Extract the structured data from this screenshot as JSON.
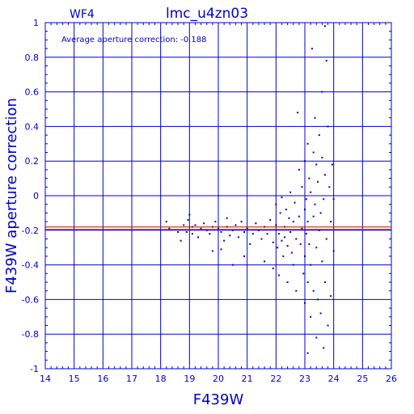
{
  "chart_data": {
    "type": "scatter",
    "title": "lmc_u4zn03",
    "subtitle": "WF4",
    "annotation": "Average aperture correction: -0.188",
    "xlabel": "F439W",
    "ylabel": "F439W aperture correction",
    "xlim": [
      14,
      26
    ],
    "ylim": [
      -1,
      1
    ],
    "x_ticks": [
      "14",
      "15",
      "16",
      "17",
      "18",
      "19",
      "20",
      "21",
      "22",
      "23",
      "24",
      "25",
      "26"
    ],
    "y_ticks": [
      "-1",
      "-0.8",
      "-0.6",
      "-0.4",
      "-0.2",
      "0",
      "0.2",
      "0.4",
      "0.6",
      "0.8",
      "1"
    ],
    "grid": true,
    "reference_line": {
      "y": -0.188,
      "color": "#cc0000"
    },
    "colors": {
      "axis": "#0000cc",
      "points": "#0000cc",
      "line": "#cc0000"
    },
    "series": [
      {
        "points": [
          [
            18.2,
            -0.15
          ],
          [
            18.3,
            -0.19
          ],
          [
            18.6,
            -0.21
          ],
          [
            18.7,
            -0.26
          ],
          [
            18.8,
            -0.17
          ],
          [
            18.9,
            -0.21
          ],
          [
            18.95,
            -0.14
          ],
          [
            19.0,
            -0.11
          ],
          [
            19.1,
            -0.22
          ],
          [
            19.1,
            -0.18
          ],
          [
            19.2,
            -0.17
          ],
          [
            19.3,
            -0.24
          ],
          [
            19.4,
            -0.19
          ],
          [
            19.5,
            -0.16
          ],
          [
            19.6,
            -0.2
          ],
          [
            19.7,
            -0.22
          ],
          [
            19.8,
            -0.18
          ],
          [
            19.8,
            -0.32
          ],
          [
            19.9,
            -0.15
          ],
          [
            20.0,
            -0.19
          ],
          [
            20.1,
            -0.21
          ],
          [
            20.1,
            -0.31
          ],
          [
            20.2,
            -0.26
          ],
          [
            20.3,
            -0.13
          ],
          [
            20.3,
            -0.18
          ],
          [
            20.4,
            -0.23
          ],
          [
            20.5,
            -0.2
          ],
          [
            20.5,
            -0.4
          ],
          [
            20.6,
            -0.17
          ],
          [
            20.7,
            -0.24
          ],
          [
            20.8,
            -0.15
          ],
          [
            20.9,
            -0.21
          ],
          [
            20.9,
            -0.35
          ],
          [
            21.0,
            -0.19
          ],
          [
            21.1,
            -0.28
          ],
          [
            21.2,
            -0.22
          ],
          [
            21.3,
            -0.16
          ],
          [
            21.4,
            -0.2
          ],
          [
            21.5,
            -0.25
          ],
          [
            21.6,
            -0.18
          ],
          [
            21.6,
            -0.38
          ],
          [
            21.7,
            -0.22
          ],
          [
            21.8,
            -0.14
          ],
          [
            21.9,
            -0.27
          ],
          [
            21.9,
            -0.42
          ],
          [
            22.0,
            -0.05
          ],
          [
            22.0,
            -0.17
          ],
          [
            22.05,
            -0.3
          ],
          [
            22.1,
            -0.22
          ],
          [
            22.1,
            -0.46
          ],
          [
            22.15,
            -0.1
          ],
          [
            22.2,
            -0.26
          ],
          [
            22.2,
            -0.01
          ],
          [
            22.25,
            -0.35
          ],
          [
            22.3,
            -0.18
          ],
          [
            22.3,
            -0.24
          ],
          [
            22.35,
            -0.08
          ],
          [
            22.4,
            -0.29
          ],
          [
            22.4,
            -0.5
          ],
          [
            22.45,
            -0.13
          ],
          [
            22.5,
            -0.21
          ],
          [
            22.5,
            0.02
          ],
          [
            22.55,
            -0.33
          ],
          [
            22.6,
            -0.15
          ],
          [
            22.6,
            -0.4
          ],
          [
            22.65,
            -0.04
          ],
          [
            22.7,
            -0.25
          ],
          [
            22.7,
            -0.55
          ],
          [
            22.75,
            0.48
          ],
          [
            22.8,
            0.15
          ],
          [
            22.8,
            -0.12
          ],
          [
            22.85,
            -0.28
          ],
          [
            22.9,
            0.05
          ],
          [
            22.9,
            -0.19
          ],
          [
            22.95,
            -0.45
          ],
          [
            23.0,
            0.2
          ],
          [
            23.0,
            -0.08
          ],
          [
            23.0,
            -0.35
          ],
          [
            23.0,
            -0.62
          ],
          [
            23.05,
            -0.02
          ],
          [
            23.05,
            -0.22
          ],
          [
            23.1,
            -0.91
          ],
          [
            23.1,
            0.3
          ],
          [
            23.1,
            -0.15
          ],
          [
            23.1,
            -0.5
          ],
          [
            23.15,
            0.1
          ],
          [
            23.15,
            -0.28
          ],
          [
            23.2,
            0.02
          ],
          [
            23.2,
            -0.4
          ],
          [
            23.2,
            -0.7
          ],
          [
            23.25,
            0.85
          ],
          [
            23.3,
            0.25
          ],
          [
            23.3,
            -0.12
          ],
          [
            23.3,
            -0.55
          ],
          [
            23.35,
            0.45
          ],
          [
            23.35,
            -0.05
          ],
          [
            23.4,
            0.18
          ],
          [
            23.4,
            -0.3
          ],
          [
            23.4,
            -0.82
          ],
          [
            23.45,
            0.08
          ],
          [
            23.45,
            -0.6
          ],
          [
            23.5,
            0.35
          ],
          [
            23.5,
            -0.2
          ],
          [
            23.55,
            -0.1
          ],
          [
            23.55,
            -0.68
          ],
          [
            23.6,
            0.6
          ],
          [
            23.6,
            0.22
          ],
          [
            23.6,
            -0.38
          ],
          [
            23.65,
            -0.02
          ],
          [
            23.65,
            -0.88
          ],
          [
            23.7,
            0.98
          ],
          [
            23.7,
            0.12
          ],
          [
            23.7,
            -0.5
          ],
          [
            23.75,
            0.78
          ],
          [
            23.75,
            -0.25
          ],
          [
            23.8,
            0.4
          ],
          [
            23.8,
            -0.75
          ],
          [
            23.85,
            0.05
          ],
          [
            23.9,
            -0.15
          ],
          [
            23.9,
            -0.58
          ],
          [
            23.95,
            0.18
          ],
          [
            24.0,
            -0.02
          ],
          [
            24.0,
            -0.32
          ]
        ]
      }
    ]
  }
}
